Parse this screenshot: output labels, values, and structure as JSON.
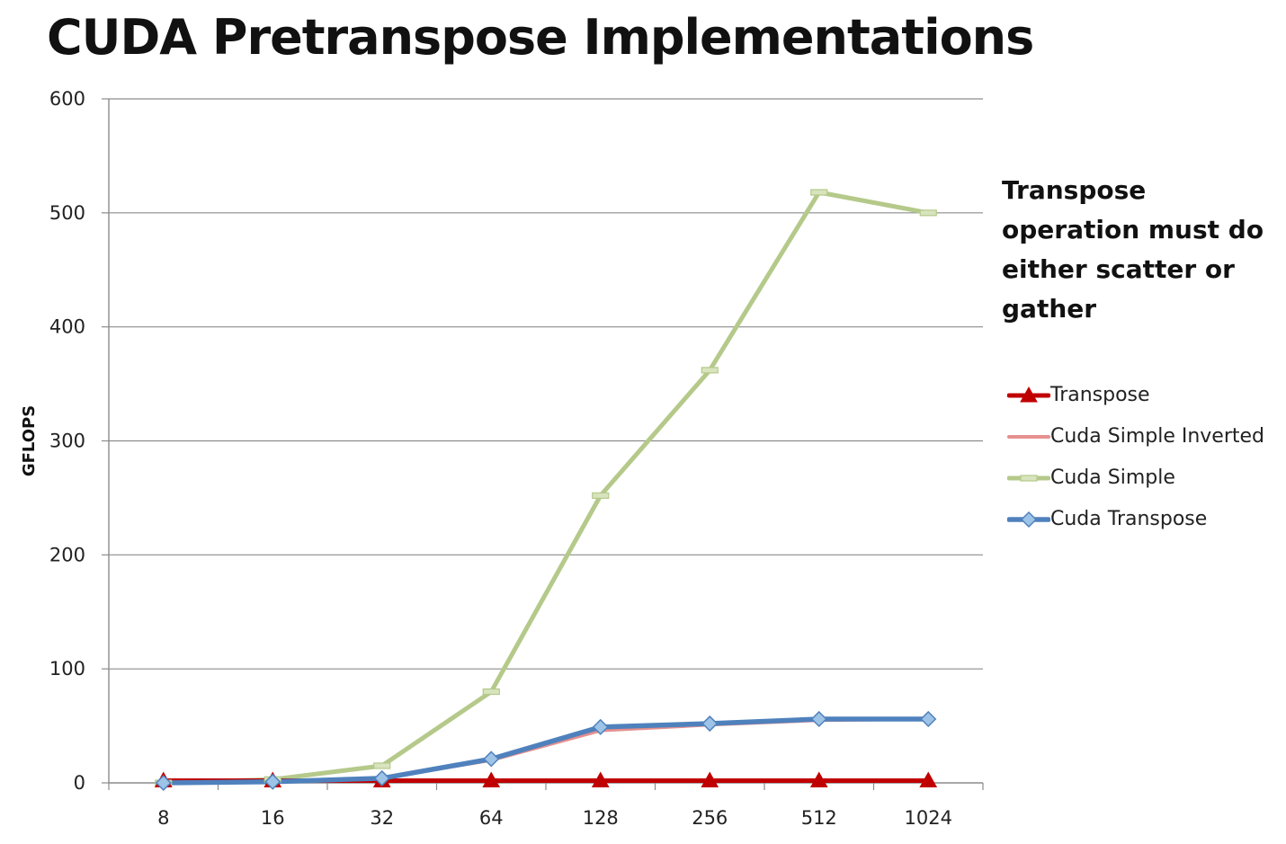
{
  "slide": {
    "title": "CUDA Pretranspose Implementations",
    "annotation": "Transpose operation must do either scatter or gather"
  },
  "chart_data": {
    "type": "line",
    "title": "",
    "xlabel": "",
    "ylabel": "GFLOPS",
    "categories": [
      "8",
      "16",
      "32",
      "64",
      "128",
      "256",
      "512",
      "1024"
    ],
    "ylim": [
      0,
      600
    ],
    "yticks": [
      0,
      100,
      200,
      300,
      400,
      500,
      600
    ],
    "grid": "horizontal",
    "legend_position": "right",
    "series": [
      {
        "name": "Transpose",
        "color": "#c00000",
        "marker": "triangle",
        "values": [
          2,
          2,
          2,
          2,
          2,
          2,
          2,
          2
        ]
      },
      {
        "name": "Cuda Simple Inverted",
        "color": "#e6908e",
        "marker": "none",
        "values": [
          0,
          1,
          4,
          20,
          46,
          51,
          55,
          56
        ]
      },
      {
        "name": "Cuda Simple",
        "color": "#b5c98a",
        "marker": "dash",
        "values": [
          0,
          3,
          15,
          80,
          252,
          362,
          518,
          500
        ]
      },
      {
        "name": "Cuda Transpose",
        "color": "#4f81bd",
        "marker": "diamond",
        "values": [
          0,
          1,
          4,
          21,
          49,
          52,
          56,
          56
        ]
      }
    ]
  }
}
